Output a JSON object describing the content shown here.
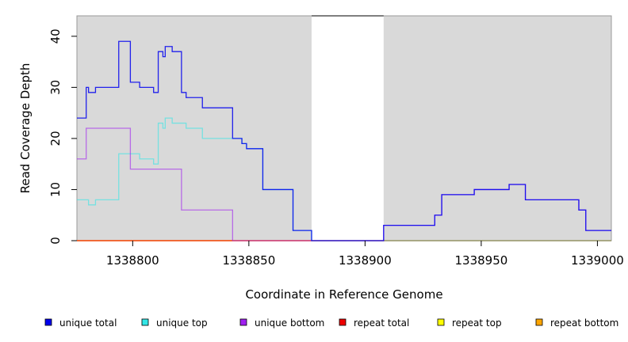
{
  "chart_data": {
    "type": "line",
    "title": "",
    "xlabel": "Coordinate in Reference Genome",
    "ylabel": "Read Coverage Depth",
    "xlim": [
      1338776,
      1339006
    ],
    "ylim": [
      0,
      44
    ],
    "x_ticks": [
      {
        "value": 1338800,
        "label": "1338800"
      },
      {
        "value": 1338850,
        "label": "1338850"
      },
      {
        "value": 1338900,
        "label": "1338900"
      },
      {
        "value": 1338950,
        "label": "1338950"
      },
      {
        "value": 1339000,
        "label": "1339000"
      }
    ],
    "y_ticks": [
      {
        "value": 0,
        "label": "0"
      },
      {
        "value": 10,
        "label": "10"
      },
      {
        "value": 20,
        "label": "20"
      },
      {
        "value": 30,
        "label": "30"
      },
      {
        "value": 40,
        "label": "40"
      }
    ],
    "gap": [
      1338877,
      1338908
    ],
    "background_color": "#d9d9d9",
    "legend_placement": "bottom",
    "series": [
      {
        "name": "unique total",
        "color": "#0000ee",
        "steps": [
          [
            1338776,
            24
          ],
          [
            1338780,
            30
          ],
          [
            1338781,
            29
          ],
          [
            1338784,
            30
          ],
          [
            1338794,
            39
          ],
          [
            1338799,
            31
          ],
          [
            1338803,
            30
          ],
          [
            1338809,
            29
          ],
          [
            1338811,
            37
          ],
          [
            1338813,
            36
          ],
          [
            1338814,
            38
          ],
          [
            1338817,
            37
          ],
          [
            1338821,
            29
          ],
          [
            1338823,
            28
          ],
          [
            1338830,
            26
          ],
          [
            1338843,
            20
          ],
          [
            1338847,
            19
          ],
          [
            1338849,
            18
          ],
          [
            1338856,
            10
          ],
          [
            1338869,
            2
          ],
          [
            1338877,
            0
          ],
          [
            1338908,
            3
          ],
          [
            1338930,
            5
          ],
          [
            1338933,
            9
          ],
          [
            1338947,
            10
          ],
          [
            1338962,
            11
          ],
          [
            1338969,
            8
          ],
          [
            1338992,
            6
          ],
          [
            1338995,
            2
          ],
          [
            1339006,
            2
          ]
        ]
      },
      {
        "name": "unique top",
        "color": "#33e6e6",
        "steps": [
          [
            1338776,
            8
          ],
          [
            1338781,
            7
          ],
          [
            1338784,
            8
          ],
          [
            1338794,
            17
          ],
          [
            1338803,
            16
          ],
          [
            1338809,
            15
          ],
          [
            1338811,
            23
          ],
          [
            1338813,
            22
          ],
          [
            1338814,
            24
          ],
          [
            1338817,
            23
          ],
          [
            1338823,
            22
          ],
          [
            1338830,
            20
          ],
          [
            1338843,
            20
          ],
          [
            1338847,
            19
          ],
          [
            1338849,
            18
          ],
          [
            1338856,
            10
          ],
          [
            1338869,
            2
          ],
          [
            1338877,
            0
          ],
          [
            1339006,
            0
          ]
        ]
      },
      {
        "name": "unique bottom",
        "color": "#a020f0",
        "steps": [
          [
            1338776,
            16
          ],
          [
            1338780,
            22
          ],
          [
            1338799,
            14
          ],
          [
            1338821,
            6
          ],
          [
            1338843,
            0
          ],
          [
            1338908,
            3
          ],
          [
            1338930,
            5
          ],
          [
            1338933,
            9
          ],
          [
            1338947,
            10
          ],
          [
            1338962,
            11
          ],
          [
            1338969,
            8
          ],
          [
            1338992,
            6
          ],
          [
            1338995,
            2
          ],
          [
            1339006,
            2
          ]
        ]
      },
      {
        "name": "repeat total",
        "color": "#ee0000",
        "steps": [
          [
            1338776,
            0
          ],
          [
            1339006,
            0
          ]
        ]
      },
      {
        "name": "repeat top",
        "color": "#ffff00",
        "steps": [
          [
            1338776,
            0
          ],
          [
            1339006,
            0
          ]
        ]
      },
      {
        "name": "repeat bottom",
        "color": "#ffa500",
        "steps": [
          [
            1338776,
            0
          ],
          [
            1339006,
            0
          ]
        ]
      }
    ]
  }
}
